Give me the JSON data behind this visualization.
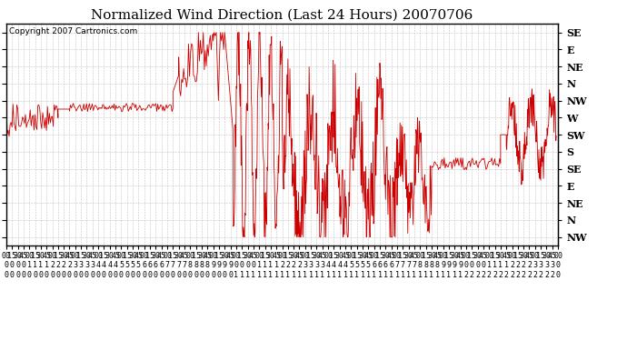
{
  "title": "Normalized Wind Direction (Last 24 Hours) 20070706",
  "copyright_text": "Copyright 2007 Cartronics.com",
  "line_color": "#cc0000",
  "background_color": "#ffffff",
  "plot_bg_color": "#ffffff",
  "grid_color": "#bbbbbb",
  "border_color": "#000000",
  "ylabel_right": [
    "SE",
    "E",
    "NE",
    "N",
    "NW",
    "W",
    "SW",
    "S",
    "SE",
    "E",
    "NE",
    "N",
    "NW"
  ],
  "ytick_values": [
    13,
    12,
    11,
    10,
    9,
    8,
    7,
    6,
    5,
    4,
    3,
    2,
    1
  ],
  "ylim": [
    0.5,
    13.5
  ],
  "title_fontsize": 11,
  "tick_fontsize": 6,
  "copyright_fontsize": 6.5
}
